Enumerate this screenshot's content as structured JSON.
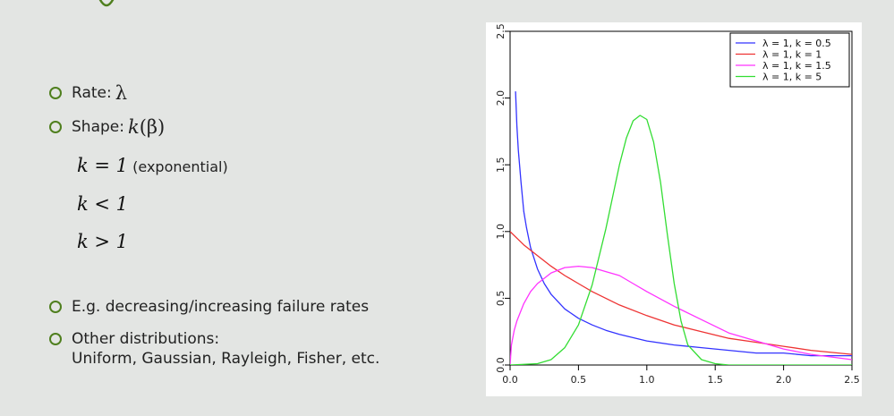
{
  "slide": {
    "bullets": [
      {
        "label": "Rate: ",
        "math": "λ"
      },
      {
        "label": "Shape: ",
        "math": "k",
        "math_suffix": " (β)"
      }
    ],
    "cases": [
      {
        "expr": "k = 1",
        "note": " (exponential)"
      },
      {
        "expr": "k < 1"
      },
      {
        "expr": "k > 1"
      }
    ],
    "notes": [
      "E.g. decreasing/increasing failure rates"
    ],
    "other": {
      "line1": "Other distributions:",
      "line2": "Uniform, Gaussian, Rayleigh, Fisher, etc."
    }
  },
  "colors": {
    "accent": "#4f7f1e",
    "background": "#e3e5e3"
  },
  "chart_data": {
    "type": "line",
    "xlim": [
      0,
      2.5
    ],
    "ylim": [
      0,
      2.5
    ],
    "xticks": [
      "0.0",
      "0.5",
      "1.0",
      "1.5",
      "2.0",
      "2.5"
    ],
    "yticks": [
      "0.0",
      "0.5",
      "1.0",
      "1.5",
      "2.0",
      "2.5"
    ],
    "legend_position": "top-right",
    "grid": false,
    "series": [
      {
        "name": "λ = 1, k = 0.5",
        "color": "#3333ff",
        "x": [
          0.04,
          0.05,
          0.06,
          0.08,
          0.1,
          0.12,
          0.15,
          0.2,
          0.25,
          0.3,
          0.4,
          0.5,
          0.6,
          0.7,
          0.8,
          1.0,
          1.2,
          1.4,
          1.6,
          1.8,
          2.0,
          2.2,
          2.5
        ],
        "y": [
          2.05,
          1.79,
          1.61,
          1.37,
          1.15,
          1.03,
          0.88,
          0.72,
          0.61,
          0.53,
          0.42,
          0.35,
          0.3,
          0.26,
          0.23,
          0.18,
          0.15,
          0.13,
          0.11,
          0.09,
          0.09,
          0.07,
          0.07
        ]
      },
      {
        "name": "λ = 1, k = 1",
        "color": "#ee3333",
        "x": [
          0,
          0.1,
          0.2,
          0.3,
          0.4,
          0.5,
          0.6,
          0.8,
          1.0,
          1.2,
          1.4,
          1.6,
          1.8,
          2.0,
          2.2,
          2.5
        ],
        "y": [
          1.0,
          0.9,
          0.82,
          0.74,
          0.67,
          0.61,
          0.55,
          0.45,
          0.37,
          0.3,
          0.25,
          0.2,
          0.17,
          0.14,
          0.11,
          0.08
        ]
      },
      {
        "name": "λ = 1, k = 1.5",
        "color": "#ff33ff",
        "x": [
          0,
          0.01,
          0.03,
          0.05,
          0.1,
          0.15,
          0.2,
          0.3,
          0.4,
          0.5,
          0.6,
          0.7,
          0.8,
          0.9,
          1.0,
          1.2,
          1.4,
          1.6,
          1.8,
          2.0,
          2.2,
          2.5
        ],
        "y": [
          0,
          0.15,
          0.26,
          0.33,
          0.46,
          0.55,
          0.61,
          0.69,
          0.73,
          0.74,
          0.73,
          0.7,
          0.67,
          0.61,
          0.55,
          0.44,
          0.34,
          0.24,
          0.18,
          0.12,
          0.08,
          0.04
        ]
      },
      {
        "name": "λ = 1, k = 5",
        "color": "#33dd33",
        "x": [
          0,
          0.2,
          0.3,
          0.4,
          0.5,
          0.6,
          0.7,
          0.8,
          0.85,
          0.9,
          0.95,
          1.0,
          1.05,
          1.1,
          1.15,
          1.2,
          1.25,
          1.3,
          1.4,
          1.5,
          1.6,
          2.5
        ],
        "y": [
          0,
          0.01,
          0.04,
          0.13,
          0.3,
          0.6,
          1.02,
          1.5,
          1.7,
          1.83,
          1.87,
          1.84,
          1.67,
          1.37,
          0.98,
          0.61,
          0.33,
          0.15,
          0.04,
          0.01,
          0.0,
          0.0
        ]
      }
    ]
  }
}
